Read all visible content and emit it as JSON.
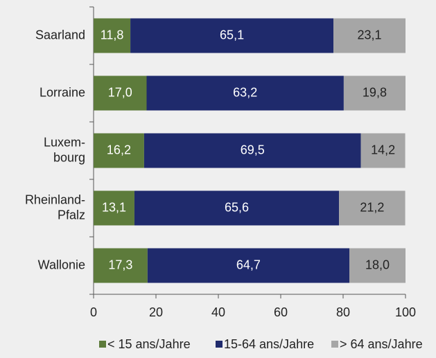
{
  "chart_data": {
    "type": "stacked_barh",
    "categories": [
      "Saarland",
      "Lorraine",
      "Luxem-\nbourg",
      "Rheinland-\nPfalz",
      "Wallonie"
    ],
    "series": [
      {
        "name": "< 15 ans/Jahre",
        "color": "#5d7b3b",
        "values": [
          11.8,
          17.0,
          16.2,
          13.1,
          17.3
        ],
        "value_labels": [
          "11,8",
          "17,0",
          "16,2",
          "13,1",
          "17,3"
        ]
      },
      {
        "name": "15-64 ans/Jahre",
        "color": "#1f2a6c",
        "values": [
          65.1,
          63.2,
          69.5,
          65.6,
          64.7
        ],
        "value_labels": [
          "65,1",
          "63,2",
          "69,5",
          "65,6",
          "64,7"
        ]
      },
      {
        "name": "> 64 ans/Jahre",
        "color": "#a6a6a6",
        "values": [
          23.1,
          19.8,
          14.2,
          21.2,
          18.0
        ],
        "value_labels": [
          "23,1",
          "19,8",
          "14,2",
          "21,2",
          "18,0"
        ]
      }
    ],
    "xlim": [
      0,
      100
    ],
    "xticks": [
      0,
      20,
      40,
      60,
      80,
      100
    ],
    "legend": "bottom"
  }
}
